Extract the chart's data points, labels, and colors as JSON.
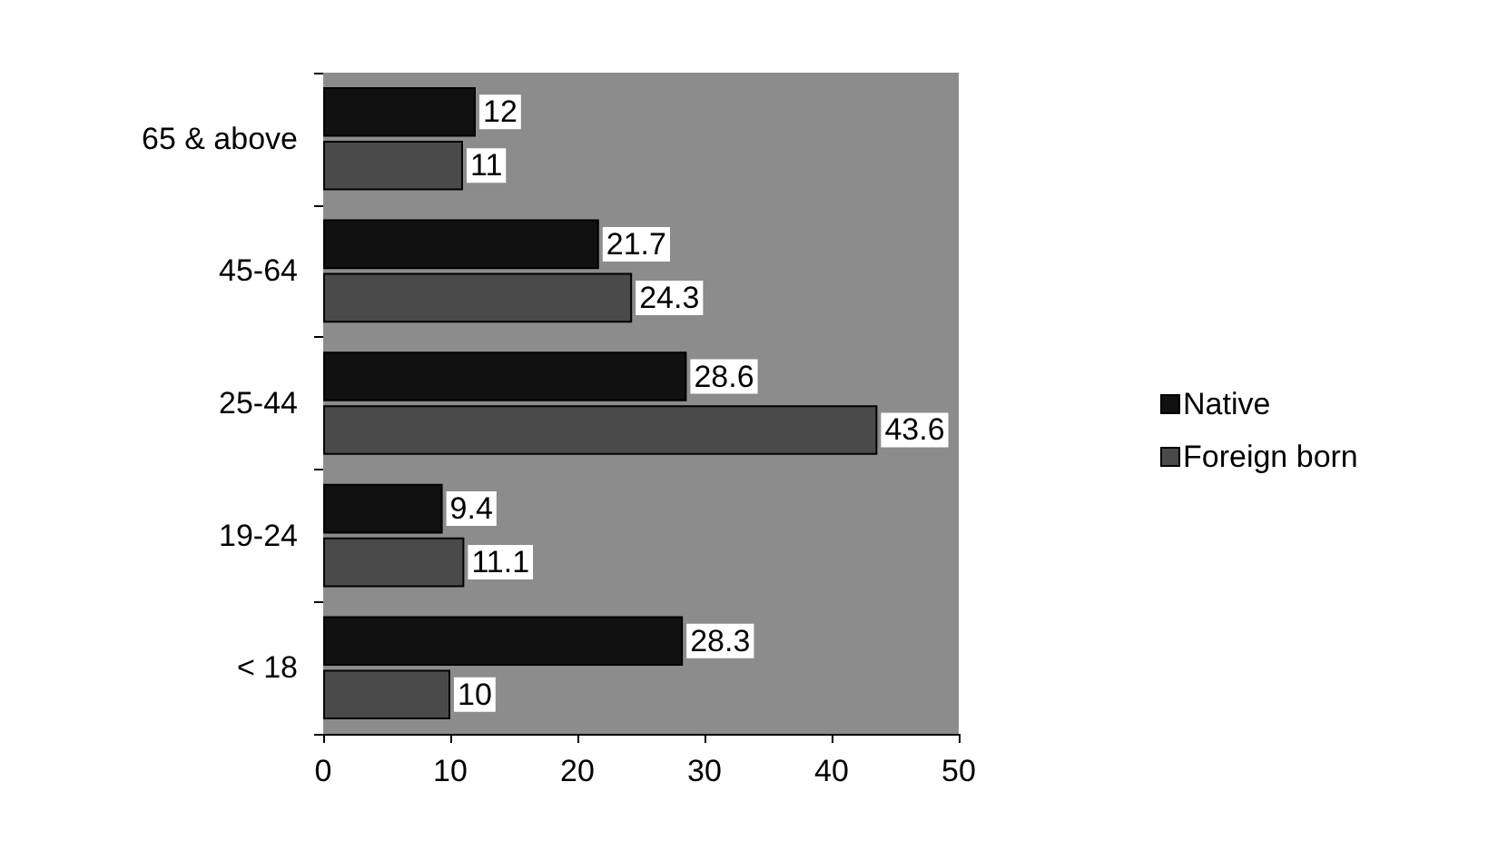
{
  "chart_data": {
    "type": "bar",
    "orientation": "horizontal",
    "categories": [
      "65 & above",
      "45-64",
      "25-44",
      "19-24",
      "< 18"
    ],
    "series": [
      {
        "name": "Native",
        "color": "#111111",
        "values": [
          12,
          21.7,
          28.6,
          9.4,
          28.3
        ]
      },
      {
        "name": "Foreign born",
        "color": "#4a4a4a",
        "values": [
          11,
          24.3,
          43.6,
          11.1,
          10
        ]
      }
    ],
    "xlim": [
      0,
      50
    ],
    "xticks": [
      0,
      10,
      20,
      30,
      40,
      50
    ],
    "data_labels": true,
    "legend": "right"
  }
}
